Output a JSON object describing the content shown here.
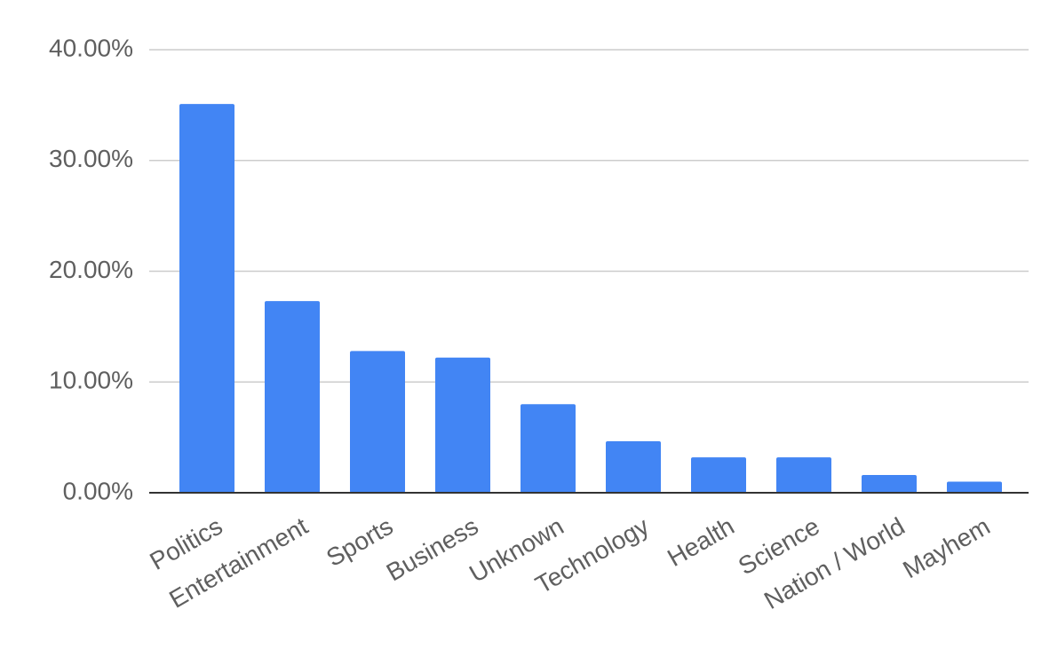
{
  "chart_data": {
    "type": "bar",
    "categories": [
      "Politics",
      "Entertainment",
      "Sports",
      "Business",
      "Unknown",
      "Technology",
      "Health",
      "Science",
      "Nation / World",
      "Mayhem"
    ],
    "values": [
      35.1,
      17.3,
      12.8,
      12.2,
      8.0,
      4.65,
      3.2,
      3.2,
      1.6,
      1.0
    ],
    "color": "#4285f4",
    "ylim": [
      0,
      40
    ],
    "yticks": [
      {
        "value": 0,
        "label": "0.00%"
      },
      {
        "value": 10,
        "label": "10.00%"
      },
      {
        "value": 20,
        "label": "20.00%"
      },
      {
        "value": 30,
        "label": "30.00%"
      },
      {
        "value": 40,
        "label": "40.00%"
      }
    ],
    "grid": true
  }
}
